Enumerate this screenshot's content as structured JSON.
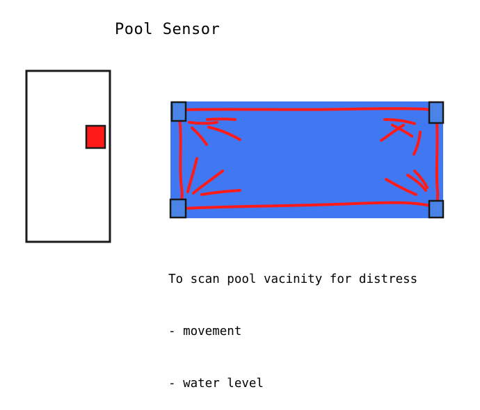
{
  "title": "Pool Sensor",
  "description": {
    "purpose": "To scan pool vacinity for distress",
    "items": [
      "- movement",
      "- water level"
    ]
  },
  "colors": {
    "pool_fill": "#3f78f0",
    "scan_lines": "#ff1a1a",
    "sensor_fill": "#4a84e6",
    "device_indicator": "#ff1a1a",
    "outline": "#1a1a1a"
  },
  "icons": {
    "device": "sensor-device-icon",
    "pool": "pool-icon",
    "sensors": "corner-sensor-icon"
  }
}
